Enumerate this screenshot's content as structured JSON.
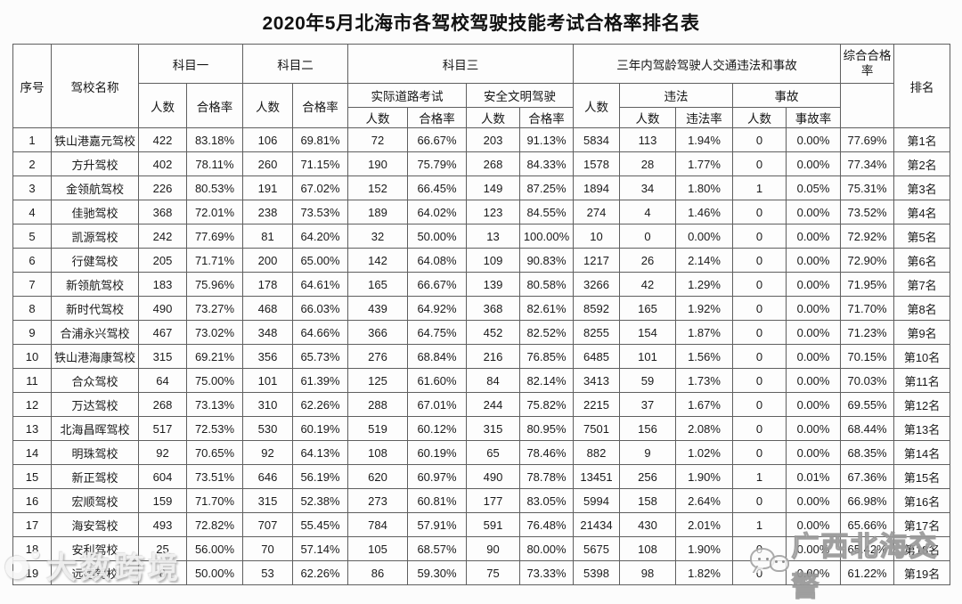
{
  "title": "2020年5月北海市各驾校驾驶技能考试合格率排名表",
  "table": {
    "headers": {
      "xuhao": "序号",
      "school": "驾校名称",
      "subject1": "科目一",
      "subject2": "科目二",
      "subject3": "科目三",
      "three_year": "三年内驾龄驾驶人交通违法和事故",
      "overall": "综合合格率",
      "rank": "排名",
      "renshu": "人数",
      "hegelv": "合格率",
      "road_test": "实际道路考试",
      "safe_driving": "安全文明驾驶",
      "weifa": "违法",
      "shigu": "事故",
      "weifalv": "违法率",
      "shigulv": "事故率"
    },
    "col_names": [
      "cell-index",
      "cell-school-name",
      "cell-s1-count",
      "cell-s1-rate",
      "cell-s2-count",
      "cell-s2-rate",
      "cell-s3-road-count",
      "cell-s3-road-rate",
      "cell-s3-safe-count",
      "cell-s3-safe-rate",
      "cell-3yr-count",
      "cell-violation-count",
      "cell-violation-rate",
      "cell-accident-count",
      "cell-accident-rate",
      "cell-overall-rate",
      "cell-rank"
    ],
    "rows": [
      [
        "1",
        "铁山港嘉元驾校",
        "422",
        "83.18%",
        "106",
        "69.81%",
        "72",
        "66.67%",
        "203",
        "91.13%",
        "5834",
        "113",
        "1.94%",
        "0",
        "0.00%",
        "77.69%",
        "第1名"
      ],
      [
        "2",
        "方升驾校",
        "402",
        "78.11%",
        "260",
        "71.15%",
        "190",
        "75.79%",
        "268",
        "84.33%",
        "1578",
        "28",
        "1.77%",
        "0",
        "0.00%",
        "77.34%",
        "第2名"
      ],
      [
        "3",
        "金领航驾校",
        "226",
        "80.53%",
        "191",
        "67.02%",
        "152",
        "66.45%",
        "149",
        "87.25%",
        "1894",
        "34",
        "1.80%",
        "1",
        "0.05%",
        "75.31%",
        "第3名"
      ],
      [
        "4",
        "佳驰驾校",
        "368",
        "72.01%",
        "238",
        "73.53%",
        "189",
        "64.02%",
        "123",
        "84.55%",
        "274",
        "4",
        "1.46%",
        "0",
        "0.00%",
        "73.52%",
        "第4名"
      ],
      [
        "5",
        "凯源驾校",
        "242",
        "77.69%",
        "81",
        "64.20%",
        "32",
        "50.00%",
        "13",
        "100.00%",
        "10",
        "0",
        "0.00%",
        "0",
        "0.00%",
        "72.92%",
        "第5名"
      ],
      [
        "6",
        "行健驾校",
        "205",
        "71.71%",
        "200",
        "65.00%",
        "142",
        "64.08%",
        "109",
        "90.83%",
        "1217",
        "26",
        "2.14%",
        "0",
        "0.00%",
        "72.90%",
        "第6名"
      ],
      [
        "7",
        "新领航驾校",
        "183",
        "75.96%",
        "178",
        "64.61%",
        "165",
        "66.67%",
        "139",
        "80.58%",
        "3266",
        "42",
        "1.29%",
        "0",
        "0.00%",
        "71.95%",
        "第7名"
      ],
      [
        "8",
        "新时代驾校",
        "490",
        "73.27%",
        "468",
        "66.03%",
        "439",
        "64.92%",
        "368",
        "82.61%",
        "8592",
        "165",
        "1.92%",
        "0",
        "0.00%",
        "71.70%",
        "第8名"
      ],
      [
        "9",
        "合浦永兴驾校",
        "467",
        "73.02%",
        "348",
        "64.66%",
        "366",
        "64.75%",
        "452",
        "82.52%",
        "8255",
        "154",
        "1.87%",
        "0",
        "0.00%",
        "71.23%",
        "第9名"
      ],
      [
        "10",
        "铁山港海康驾校",
        "315",
        "69.21%",
        "356",
        "65.73%",
        "276",
        "68.84%",
        "216",
        "76.85%",
        "6485",
        "101",
        "1.56%",
        "0",
        "0.00%",
        "70.15%",
        "第10名"
      ],
      [
        "11",
        "合众驾校",
        "64",
        "75.00%",
        "101",
        "61.39%",
        "125",
        "61.60%",
        "84",
        "82.14%",
        "3413",
        "59",
        "1.73%",
        "0",
        "0.00%",
        "70.03%",
        "第11名"
      ],
      [
        "12",
        "万达驾校",
        "268",
        "73.13%",
        "310",
        "62.26%",
        "288",
        "67.01%",
        "244",
        "75.82%",
        "2215",
        "37",
        "1.67%",
        "0",
        "0.00%",
        "69.55%",
        "第12名"
      ],
      [
        "13",
        "北海昌晖驾校",
        "517",
        "72.53%",
        "530",
        "60.19%",
        "519",
        "60.12%",
        "315",
        "80.95%",
        "7501",
        "156",
        "2.08%",
        "0",
        "0.00%",
        "68.44%",
        "第13名"
      ],
      [
        "14",
        "明珠驾校",
        "92",
        "70.65%",
        "92",
        "64.13%",
        "108",
        "60.19%",
        "65",
        "78.46%",
        "882",
        "9",
        "1.02%",
        "0",
        "0.00%",
        "68.35%",
        "第14名"
      ],
      [
        "15",
        "新正驾校",
        "604",
        "73.51%",
        "646",
        "56.19%",
        "620",
        "60.97%",
        "490",
        "78.78%",
        "13451",
        "256",
        "1.90%",
        "1",
        "0.01%",
        "67.36%",
        "第15名"
      ],
      [
        "16",
        "宏顺驾校",
        "159",
        "71.70%",
        "315",
        "52.38%",
        "273",
        "60.81%",
        "177",
        "83.05%",
        "5994",
        "158",
        "2.64%",
        "0",
        "0.00%",
        "66.98%",
        "第16名"
      ],
      [
        "17",
        "海安驾校",
        "493",
        "72.82%",
        "707",
        "55.45%",
        "784",
        "57.91%",
        "591",
        "76.48%",
        "21434",
        "430",
        "2.01%",
        "1",
        "0.00%",
        "65.66%",
        "第17名"
      ],
      [
        "18",
        "安利驾校",
        "25",
        "56.00%",
        "70",
        "57.14%",
        "105",
        "68.57%",
        "90",
        "80.00%",
        "5675",
        "108",
        "1.90%",
        "0",
        "0.00%",
        "65.42%",
        "第18名"
      ],
      [
        "19",
        "远德驾校",
        "8",
        "50.00%",
        "53",
        "62.26%",
        "86",
        "59.30%",
        "75",
        "73.33%",
        "5398",
        "98",
        "1.82%",
        "0",
        "0.00%",
        "61.22%",
        "第19名"
      ]
    ]
  },
  "watermarks": {
    "left_text": "大数跨境",
    "right_text": "广西北海交警"
  },
  "colors": {
    "border": "#5f5f5f",
    "text": "#1d1d1d",
    "background": "#fcfcfc"
  }
}
